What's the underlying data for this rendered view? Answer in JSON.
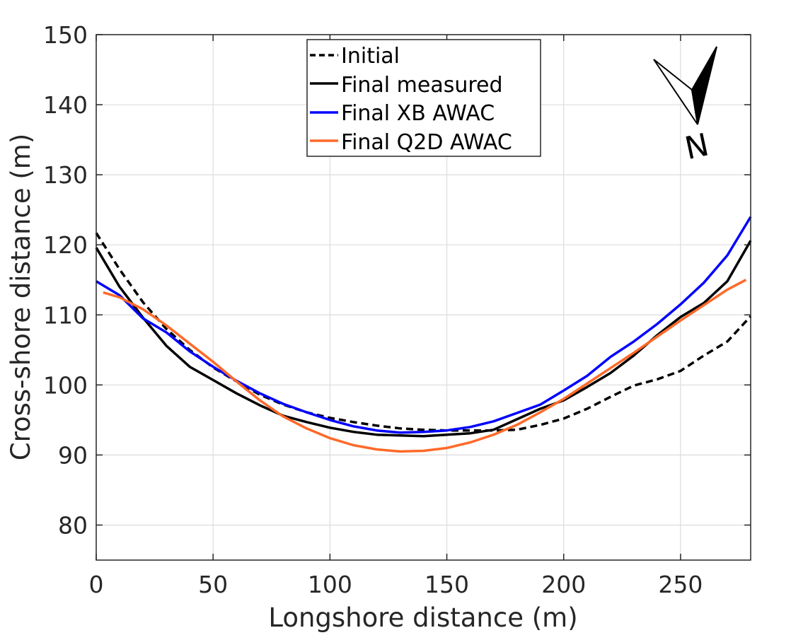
{
  "chart_data": {
    "type": "line",
    "title": "",
    "xlabel": "Longshore distance (m)",
    "ylabel": "Cross-shore distance (m)",
    "xlim": [
      0,
      280
    ],
    "ylim": [
      75,
      150
    ],
    "xticks": [
      0,
      50,
      100,
      150,
      200,
      250
    ],
    "yticks": [
      80,
      90,
      100,
      110,
      120,
      130,
      140,
      150
    ],
    "grid": true,
    "legend_position": "top-center",
    "series": [
      {
        "name": "Initial",
        "color": "#000000",
        "style": "dashed",
        "x": [
          0,
          10,
          20,
          30,
          40,
          50,
          60,
          70,
          80,
          90,
          100,
          110,
          120,
          130,
          140,
          150,
          160,
          170,
          180,
          190,
          200,
          210,
          220,
          230,
          240,
          250,
          260,
          270,
          280
        ],
        "y": [
          121.7,
          116.5,
          111.8,
          108.0,
          105.0,
          102.5,
          100.5,
          98.6,
          97.2,
          96.1,
          95.3,
          94.7,
          94.2,
          93.8,
          93.6,
          93.5,
          93.5,
          93.5,
          93.6,
          94.3,
          95.2,
          96.6,
          98.3,
          99.9,
          100.8,
          102.0,
          104.2,
          106.2,
          109.8
        ]
      },
      {
        "name": "Final measured",
        "color": "#000000",
        "style": "solid",
        "x": [
          0,
          10,
          20,
          30,
          40,
          50,
          60,
          70,
          80,
          90,
          100,
          110,
          120,
          130,
          140,
          150,
          160,
          170,
          180,
          190,
          200,
          210,
          220,
          230,
          240,
          250,
          260,
          270,
          280
        ],
        "y": [
          119.6,
          114.0,
          109.6,
          105.6,
          102.6,
          100.7,
          98.8,
          97.1,
          95.6,
          94.7,
          93.9,
          93.3,
          92.9,
          92.8,
          92.7,
          92.9,
          93.1,
          93.6,
          95.1,
          96.6,
          97.8,
          99.7,
          101.7,
          104.2,
          107.1,
          109.7,
          111.7,
          114.8,
          120.6
        ]
      },
      {
        "name": "Final XB AWAC",
        "color": "#0000ff",
        "style": "solid",
        "x": [
          0,
          10,
          20,
          30,
          40,
          50,
          60,
          70,
          80,
          90,
          100,
          110,
          120,
          130,
          140,
          150,
          160,
          170,
          180,
          190,
          200,
          210,
          220,
          230,
          240,
          250,
          260,
          270,
          280
        ],
        "y": [
          114.8,
          112.8,
          109.5,
          107.5,
          104.8,
          102.6,
          100.6,
          98.8,
          97.3,
          96.1,
          95.0,
          94.1,
          93.5,
          93.2,
          93.3,
          93.5,
          94.0,
          94.8,
          96.0,
          97.2,
          99.2,
          101.3,
          104.0,
          106.2,
          108.7,
          111.5,
          114.6,
          118.5,
          124.0
        ]
      },
      {
        "name": "Final Q2D AWAC",
        "color": "#ff6929",
        "style": "solid",
        "x": [
          3,
          10,
          20,
          30,
          40,
          50,
          60,
          70,
          80,
          90,
          100,
          110,
          120,
          130,
          140,
          150,
          160,
          170,
          180,
          190,
          200,
          210,
          220,
          230,
          240,
          250,
          260,
          270,
          278
        ],
        "y": [
          113.2,
          112.5,
          110.8,
          108.5,
          105.9,
          103.3,
          100.5,
          97.8,
          95.5,
          93.8,
          92.4,
          91.4,
          90.8,
          90.5,
          90.6,
          91.0,
          91.8,
          92.9,
          94.3,
          96.1,
          98.0,
          100.2,
          102.4,
          104.6,
          106.9,
          109.2,
          111.4,
          113.6,
          115.0
        ]
      }
    ],
    "annotations": [
      {
        "type": "north-arrow",
        "label": "N"
      }
    ]
  }
}
